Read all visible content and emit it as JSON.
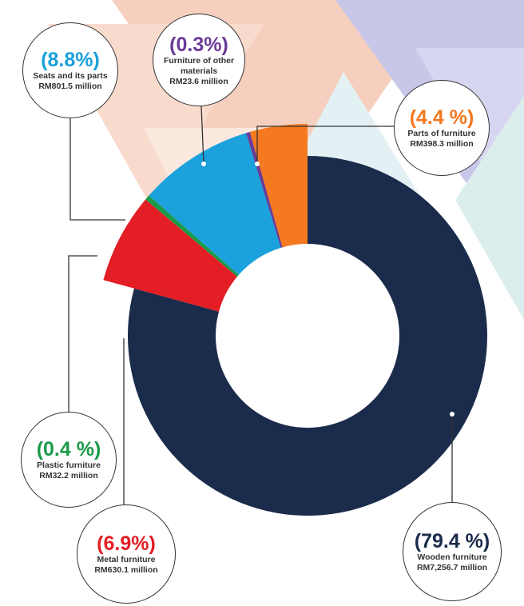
{
  "chart_data": {
    "type": "donut",
    "categories": [
      "Wooden furniture",
      "Metal furniture",
      "Plastic furniture",
      "Seats and its parts",
      "Furniture of other materials",
      "Parts of furniture"
    ],
    "values": [
      79.4,
      6.9,
      0.4,
      8.8,
      0.3,
      4.4
    ],
    "value_labels": [
      "(79.4 %)",
      "(6.9%)",
      "(0.4 %)",
      "(8.8%)",
      "(0.3%)",
      "(4.4 %)"
    ],
    "amount_labels": [
      "RM7,256.7 million",
      "RM630.1 million",
      "RM32.2 million",
      "RM801.5  million",
      "RM23.6 million",
      "RM398.3 million"
    ],
    "colors": [
      "#1b2b4b",
      "#e31e25",
      "#1a9a4a",
      "#1ba1dc",
      "#6a3b97",
      "#f47920"
    ]
  }
}
